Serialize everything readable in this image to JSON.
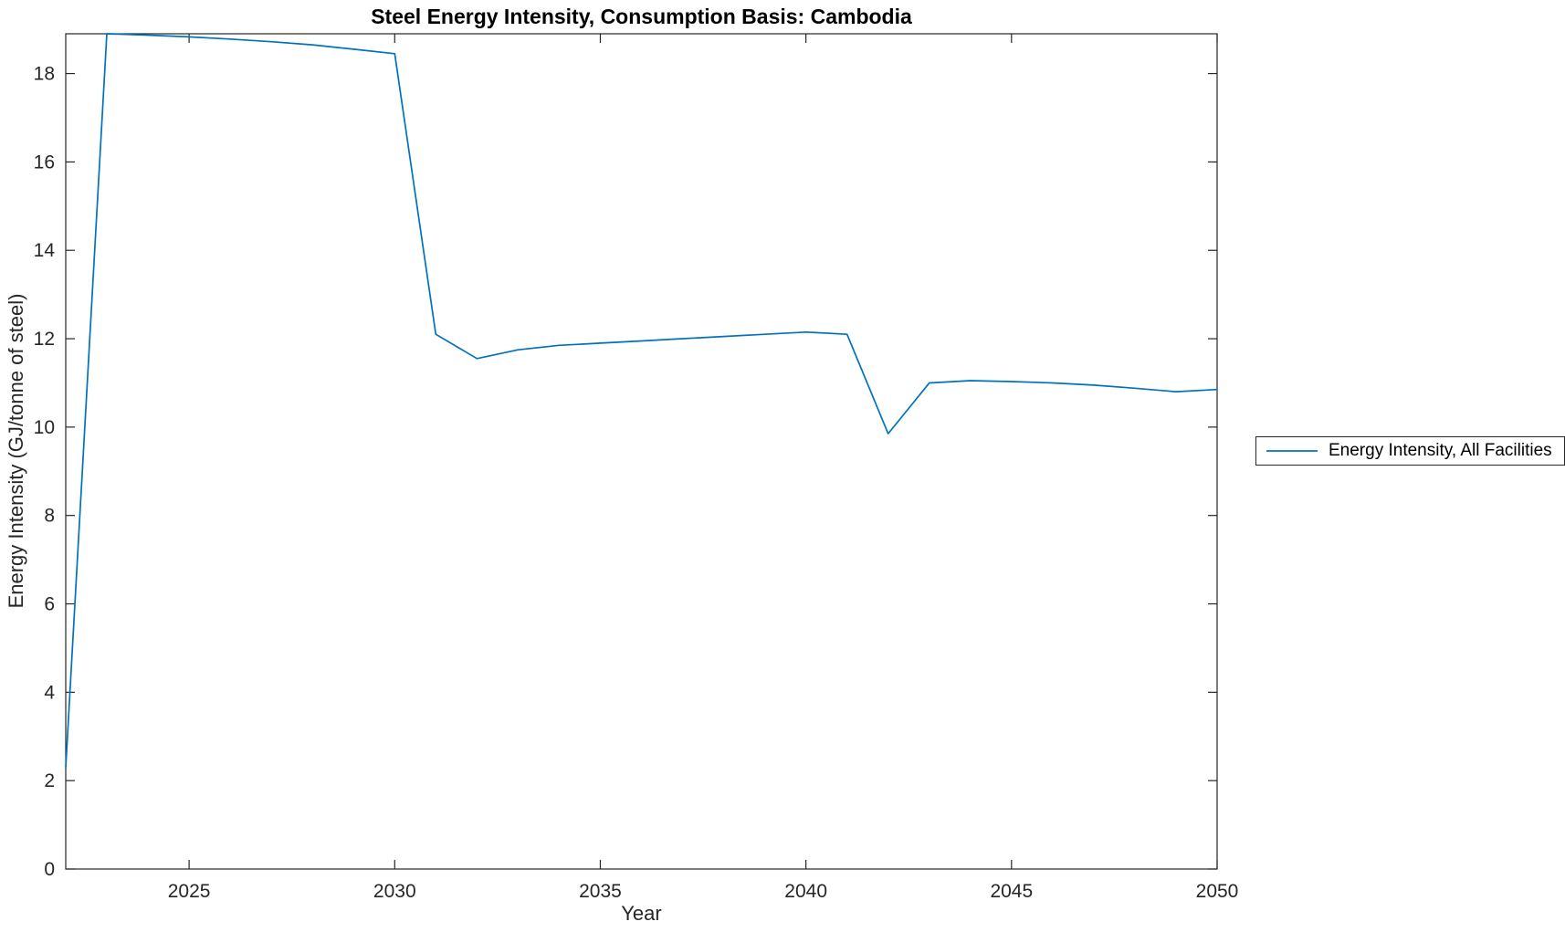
{
  "chart_data": {
    "type": "line",
    "title": "Steel Energy Intensity, Consumption Basis: Cambodia",
    "xlabel": "Year",
    "ylabel": "Energy Intensity (GJ/tonne of steel)",
    "xlim": [
      2022,
      2050
    ],
    "ylim": [
      0,
      18.9
    ],
    "x_ticks": [
      2025,
      2030,
      2035,
      2040,
      2045,
      2050
    ],
    "y_ticks": [
      0,
      2,
      4,
      6,
      8,
      10,
      12,
      14,
      16,
      18
    ],
    "grid": false,
    "background_color": "#ffffff",
    "axis_color": "#262626",
    "tick_label_color": "#262626",
    "tick_direction": "in",
    "legend": {
      "position": "outside-right",
      "border_color": "#262626",
      "entries": [
        "Energy Intensity, All Facilities"
      ]
    },
    "series": [
      {
        "name": "Energy Intensity, All Facilities",
        "color": "#0072BD",
        "x": [
          2022,
          2023,
          2024,
          2025,
          2026,
          2027,
          2028,
          2029,
          2030,
          2031,
          2032,
          2033,
          2034,
          2035,
          2036,
          2037,
          2038,
          2039,
          2040,
          2041,
          2042,
          2043,
          2044,
          2045,
          2046,
          2047,
          2048,
          2049,
          2050
        ],
        "values": [
          2.3,
          18.9,
          18.87,
          18.83,
          18.78,
          18.72,
          18.65,
          18.55,
          18.45,
          12.1,
          11.55,
          11.75,
          11.85,
          11.9,
          11.95,
          12.0,
          12.05,
          12.1,
          12.15,
          12.1,
          9.85,
          11.0,
          11.05,
          11.03,
          11.0,
          10.95,
          10.88,
          10.8,
          10.85
        ]
      }
    ]
  }
}
